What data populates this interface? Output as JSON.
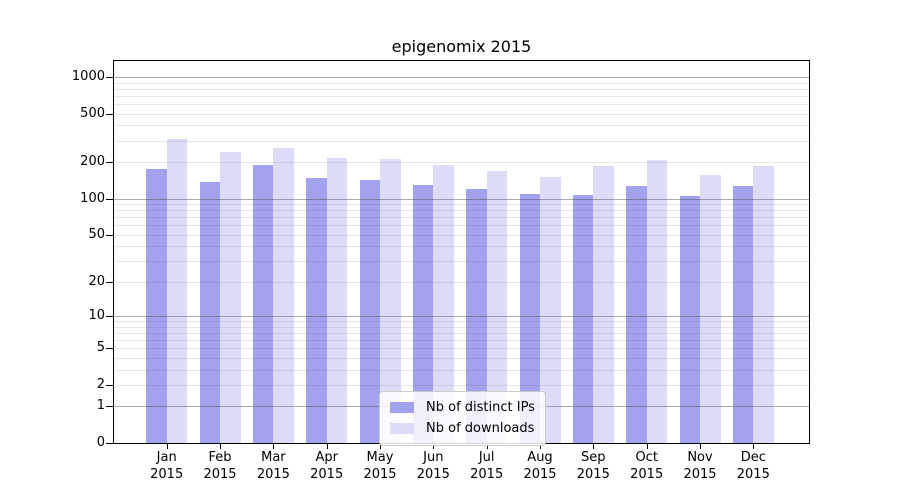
{
  "chart_data": {
    "type": "bar",
    "title": "epigenomix 2015",
    "categories": [
      "Jan",
      "Feb",
      "Mar",
      "Apr",
      "May",
      "Jun",
      "Jul",
      "Aug",
      "Sep",
      "Oct",
      "Nov",
      "Dec"
    ],
    "year_label": "2015",
    "series": [
      {
        "key": "distinct-ips",
        "name": "Nb of distinct IPs",
        "color": "#a2a2ee",
        "values": [
          175,
          138,
          188,
          148,
          143,
          130,
          121,
          110,
          106,
          127,
          104,
          126
        ]
      },
      {
        "key": "downloads",
        "name": "Nb of downloads",
        "color": "#dcdcf6",
        "values": [
          310,
          243,
          260,
          215,
          212,
          190,
          170,
          150,
          184,
          208,
          157,
          187
        ]
      }
    ],
    "y_axis": {
      "scale": "log10(1+y)",
      "tick_labels": [
        "1000",
        "500",
        "200",
        "100",
        "50",
        "20",
        "10",
        "5",
        "2",
        "1",
        "0"
      ],
      "tick_values": [
        1000,
        500,
        200,
        100,
        50,
        20,
        10,
        5,
        2,
        1,
        0
      ],
      "major_gridlines": [
        1,
        10,
        100,
        1000
      ],
      "minor_gridline_decades": [
        1,
        10,
        100
      ],
      "ylim": [
        0,
        1390
      ]
    },
    "legend": {
      "position": "lower center"
    },
    "grid": true,
    "colors": {
      "axis": "#000000",
      "major_grid": "#ababab",
      "minor_grid": "#e8e8e8",
      "background": "#ffffff"
    }
  }
}
